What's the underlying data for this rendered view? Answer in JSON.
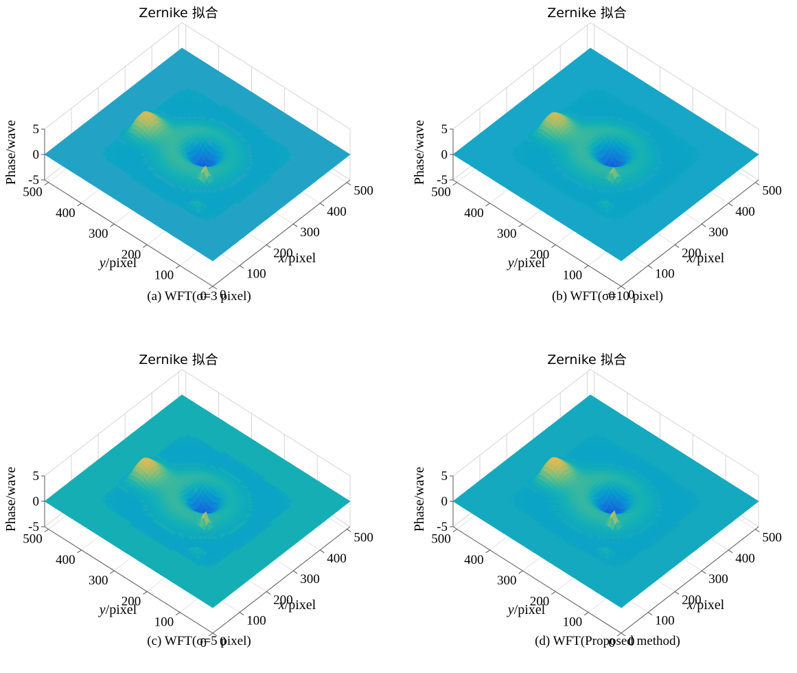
{
  "chart_data": [
    {
      "type": "surface",
      "panel": "a",
      "title": "Zernike 拟合",
      "caption": "(a) WFT(σ=3 pixel)",
      "xlabel": "x/pixel",
      "ylabel": "y/pixel",
      "zlabel": "Phase/wave",
      "x_ticks": [
        "0",
        "100",
        "200",
        "300",
        "400",
        "500"
      ],
      "y_ticks": [
        "0",
        "100",
        "200",
        "300",
        "400",
        "500"
      ],
      "z_ticks": [
        "-5",
        "0",
        "5"
      ],
      "xlim": [
        0,
        512
      ],
      "ylim": [
        0,
        512
      ],
      "zlim": [
        -5,
        5
      ],
      "colormap": "parula",
      "plane_color": "#22a3c6",
      "features": {
        "peak_height": 3.2,
        "hole_depth": -3.8,
        "spike_height": 2.6
      }
    },
    {
      "type": "surface",
      "panel": "b",
      "title": "Zernike 拟合",
      "caption": "(b) WFT(σ=10 pixel)",
      "xlabel": "x/pixel",
      "ylabel": "y/pixel",
      "zlabel": "Phase/wave",
      "x_ticks": [
        "0",
        "100",
        "200",
        "300",
        "400",
        "500"
      ],
      "y_ticks": [
        "0",
        "100",
        "200",
        "300",
        "400",
        "500"
      ],
      "z_ticks": [
        "-5",
        "0",
        "5"
      ],
      "xlim": [
        0,
        512
      ],
      "ylim": [
        0,
        512
      ],
      "zlim": [
        -5,
        5
      ],
      "colormap": "parula",
      "plane_color": "#17a6c8",
      "features": {
        "peak_height": 3.0,
        "hole_depth": -4.0,
        "spike_height": 2.2
      }
    },
    {
      "type": "surface",
      "panel": "c",
      "title": "Zernike 拟合",
      "caption": "(c) WFT(σ=5 pixel)",
      "xlabel": "x/pixel",
      "ylabel": "y/pixel",
      "zlabel": "Phase/wave",
      "x_ticks": [
        "0",
        "100",
        "200",
        "300",
        "400",
        "500"
      ],
      "y_ticks": [
        "0",
        "100",
        "200",
        "300",
        "400",
        "500"
      ],
      "z_ticks": [
        "-5",
        "0",
        "5"
      ],
      "xlim": [
        0,
        512
      ],
      "ylim": [
        0,
        512
      ],
      "zlim": [
        -5,
        5
      ],
      "colormap": "parula",
      "plane_color": "#15aeb5",
      "features": {
        "peak_height": 3.3,
        "hole_depth": -3.7,
        "spike_height": 2.8
      }
    },
    {
      "type": "surface",
      "panel": "d",
      "title": "Zernike 拟合",
      "caption": "(d) WFT(Proposed method)",
      "xlabel": "x/pixel",
      "ylabel": "y/pixel",
      "zlabel": "Phase/wave",
      "x_ticks": [
        "0",
        "100",
        "200",
        "300",
        "400",
        "500"
      ],
      "y_ticks": [
        "0",
        "100",
        "200",
        "300",
        "400",
        "500"
      ],
      "z_ticks": [
        "-5",
        "0",
        "5"
      ],
      "xlim": [
        0,
        512
      ],
      "ylim": [
        0,
        512
      ],
      "zlim": [
        -5,
        5
      ],
      "colormap": "parula",
      "plane_color": "#14a9be",
      "features": {
        "peak_height": 3.4,
        "hole_depth": -4.2,
        "spike_height": 3.0
      }
    }
  ]
}
